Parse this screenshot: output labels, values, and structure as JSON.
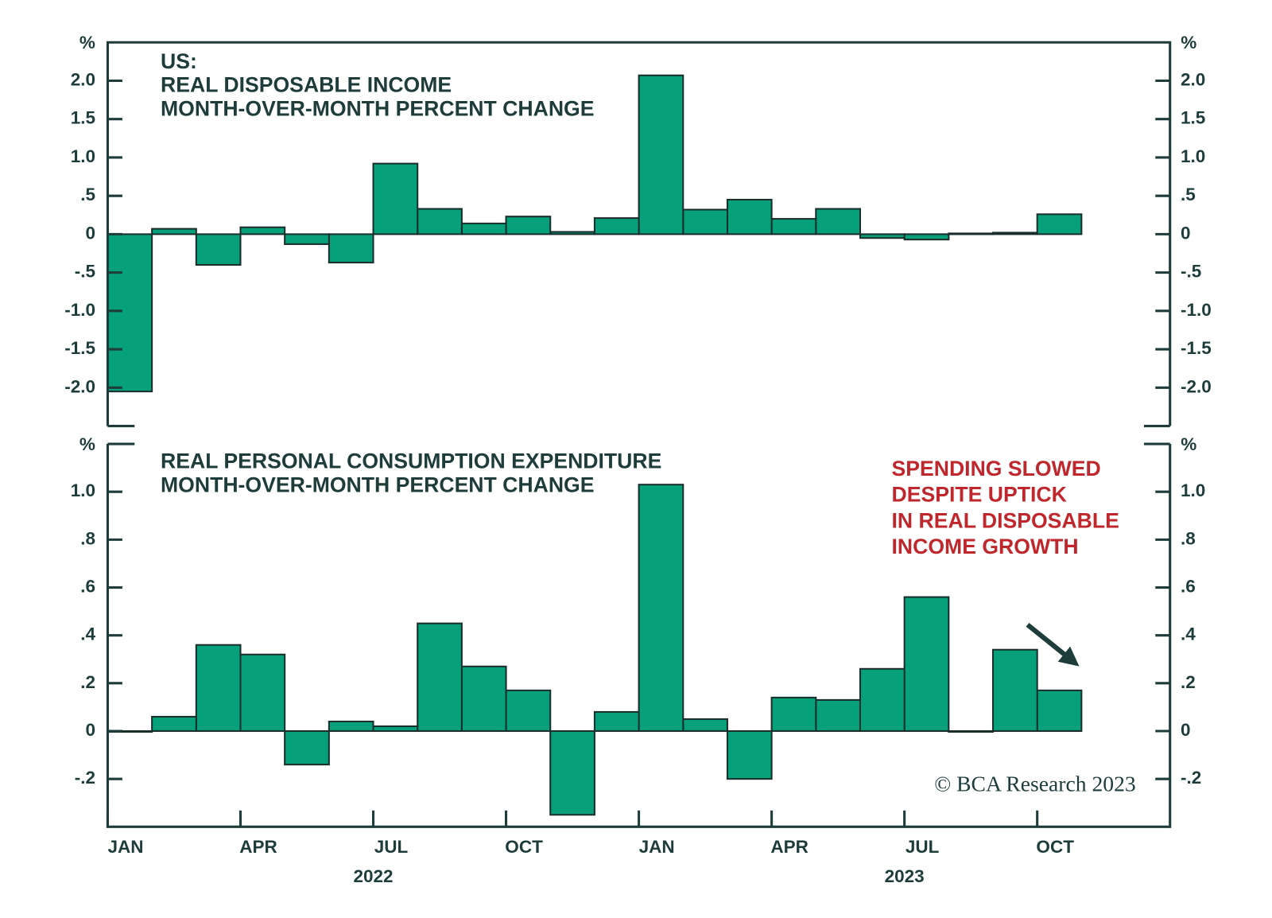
{
  "chart_data": [
    {
      "type": "bar",
      "title": [
        "US:",
        "REAL DISPOSABLE INCOME",
        "MONTH-OVER-MONTH PERCENT CHANGE"
      ],
      "y_unit": "%",
      "color": "#06a07a",
      "values": [
        -2.05,
        0.07,
        -0.4,
        0.09,
        -0.13,
        -0.37,
        0.92,
        0.33,
        0.14,
        0.23,
        0.03,
        0.21,
        2.07,
        0.32,
        0.45,
        0.2,
        0.33,
        -0.05,
        -0.07,
        0.01,
        0.02,
        0.26
      ],
      "ylim": [
        -2.5,
        2.5
      ],
      "yticks": [
        {
          "value": -2,
          "label": "-2.0"
        },
        {
          "value": -1.5,
          "label": "-1.5"
        },
        {
          "value": -1,
          "label": "-1.0"
        },
        {
          "value": -0.5,
          "label": "-.5"
        },
        0,
        {
          "value": 0.5,
          "label": ".5"
        },
        {
          "value": 1,
          "label": "1.0"
        },
        1.5,
        {
          "value": 2,
          "label": "2.0"
        }
      ],
      "grid": false
    },
    {
      "type": "bar",
      "title": [
        "REAL PERSONAL CONSUMPTION EXPENDITURE",
        "MONTH-OVER-MONTH PERCENT CHANGE"
      ],
      "y_unit": "%",
      "color": "#06a07a",
      "categories": [
        "JAN",
        null,
        null,
        "APR",
        null,
        null,
        "JUL",
        null,
        null,
        "OCT",
        null,
        null,
        "JAN",
        null,
        null,
        "APR",
        null,
        null,
        "JUL",
        null,
        null,
        "OCT"
      ],
      "years": [
        "2022",
        "2023"
      ],
      "values": [
        0.0,
        0.06,
        0.36,
        0.32,
        -0.14,
        0.04,
        0.02,
        0.45,
        0.27,
        0.17,
        -0.35,
        0.08,
        1.03,
        0.05,
        -0.2,
        0.14,
        0.13,
        0.26,
        0.56,
        0.0,
        0.34,
        0.17
      ],
      "ylim": [
        -0.4,
        1.2
      ],
      "yticks": [
        {
          "value": -0.2,
          "label": "-.2"
        },
        0,
        {
          "value": 0.2,
          "label": ".2"
        },
        {
          "value": 0.4,
          "label": ".4"
        },
        {
          "value": 0.6,
          "label": ".6"
        },
        {
          "value": 0.8,
          "label": ".8"
        },
        {
          "value": 1,
          "label": "1.0"
        }
      ],
      "annotation": [
        "SPENDING SLOWED",
        "DESPITE UPTICK",
        "IN REAL DISPOSABLE",
        "INCOME GROWTH"
      ],
      "credit": "© BCA Research 2023",
      "grid": false
    }
  ]
}
